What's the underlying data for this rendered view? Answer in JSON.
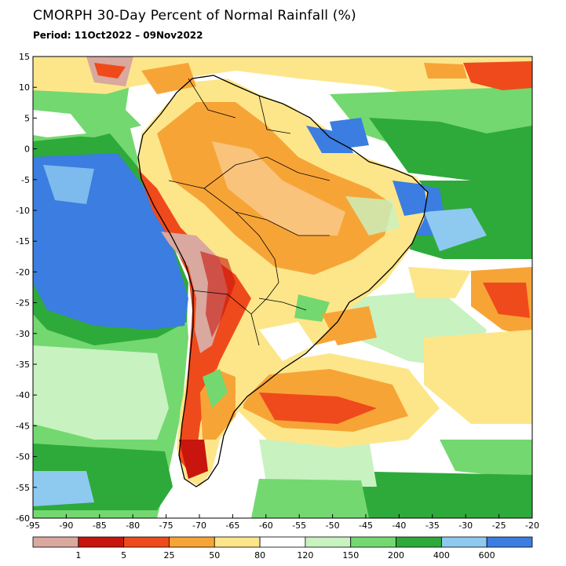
{
  "title": "CMORPH 30-Day Percent of Normal Rainfall (%)",
  "period": "Period: 11Oct2022 – 09Nov2022",
  "map": {
    "lon_ticks": [
      "-95",
      "-90",
      "-85",
      "-80",
      "-75",
      "-70",
      "-65",
      "-60",
      "-55",
      "-50",
      "-45",
      "-40",
      "-35",
      "-30",
      "-25",
      "-20"
    ],
    "lat_ticks": [
      "15",
      "10",
      "5",
      "0",
      "-5",
      "-10",
      "-15",
      "-20",
      "-25",
      "-30",
      "-35",
      "-40",
      "-45",
      "-50",
      "-55",
      "-60"
    ]
  },
  "legend": {
    "colors": [
      "#d9a89e",
      "#c8150e",
      "#ef4a1b",
      "#f7a437",
      "#fde68a",
      "#ffffff",
      "#c8f2c0",
      "#73d870",
      "#2eaa3a",
      "#8ec9f0",
      "#3b7de0"
    ],
    "labels": [
      "1",
      "5",
      "25",
      "50",
      "80",
      "120",
      "150",
      "200",
      "400",
      "600"
    ]
  }
}
